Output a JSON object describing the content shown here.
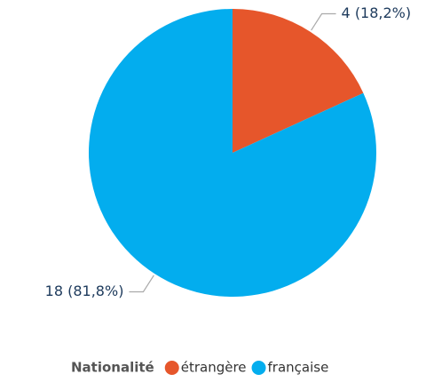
{
  "chart_data": {
    "type": "pie",
    "categories": [
      "étrangère",
      "française"
    ],
    "values": [
      4,
      18
    ],
    "value_labels": [
      "4 (18,2%)",
      "18 (81,8%)"
    ],
    "colors": [
      "#e6562b",
      "#03adee"
    ],
    "legend_title": "Nationalité",
    "legend": "bottom"
  }
}
